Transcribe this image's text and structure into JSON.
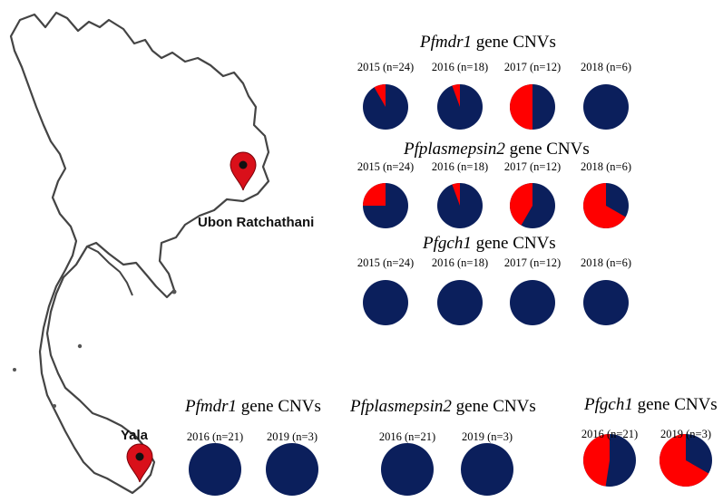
{
  "colors": {
    "yes": "#ff0000",
    "no": "#0b1f5c"
  },
  "places": {
    "ubon": "Ubon Ratchathani",
    "yala": "Yala"
  },
  "groups": [
    {
      "id": "ubon-pfmdr1",
      "gene": "Pfmdr1",
      "suffix": " gene CNVs",
      "pies": [
        {
          "label": "2015 (n=24)",
          "red_fraction": 0.083
        },
        {
          "label": "2016 (n=18)",
          "red_fraction": 0.056
        },
        {
          "label": "2017 (n=12)",
          "red_fraction": 0.5
        },
        {
          "label": "2018 (n=6)",
          "red_fraction": 0
        }
      ]
    },
    {
      "id": "ubon-pfplasmepsin2",
      "gene": "Pfplasmepsin2",
      "suffix": " gene CNVs",
      "pies": [
        {
          "label": "2015 (n=24)",
          "red_fraction": 0.25
        },
        {
          "label": "2016 (n=18)",
          "red_fraction": 0.056
        },
        {
          "label": "2017 (n=12)",
          "red_fraction": 0.417
        },
        {
          "label": "2018 (n=6)",
          "red_fraction": 0.667
        }
      ]
    },
    {
      "id": "ubon-pfgch1",
      "gene": "Pfgch1",
      "suffix": " gene CNVs",
      "pies": [
        {
          "label": "2015 (n=24)",
          "red_fraction": 0
        },
        {
          "label": "2016 (n=18)",
          "red_fraction": 0
        },
        {
          "label": "2017 (n=12)",
          "red_fraction": 0
        },
        {
          "label": "2018 (n=6)",
          "red_fraction": 0
        }
      ]
    },
    {
      "id": "yala-pfmdr1",
      "gene": "Pfmdr1",
      "suffix": " gene CNVs",
      "pies": [
        {
          "label": "2016 (n=21)",
          "red_fraction": 0
        },
        {
          "label": "2019 (n=3)",
          "red_fraction": 0
        }
      ]
    },
    {
      "id": "yala-pfplasmepsin2",
      "gene": "Pfplasmepsin2",
      "suffix": " gene CNVs",
      "pies": [
        {
          "label": "2016 (n=21)",
          "red_fraction": 0
        },
        {
          "label": "2019 (n=3)",
          "red_fraction": 0
        }
      ]
    },
    {
      "id": "yala-pfgch1",
      "gene": "Pfgch1",
      "suffix": " gene CNVs",
      "pies": [
        {
          "label": "2016 (n=21)",
          "red_fraction": 0.476
        },
        {
          "label": "2019 (n=3)",
          "red_fraction": 0.667
        }
      ]
    }
  ]
}
